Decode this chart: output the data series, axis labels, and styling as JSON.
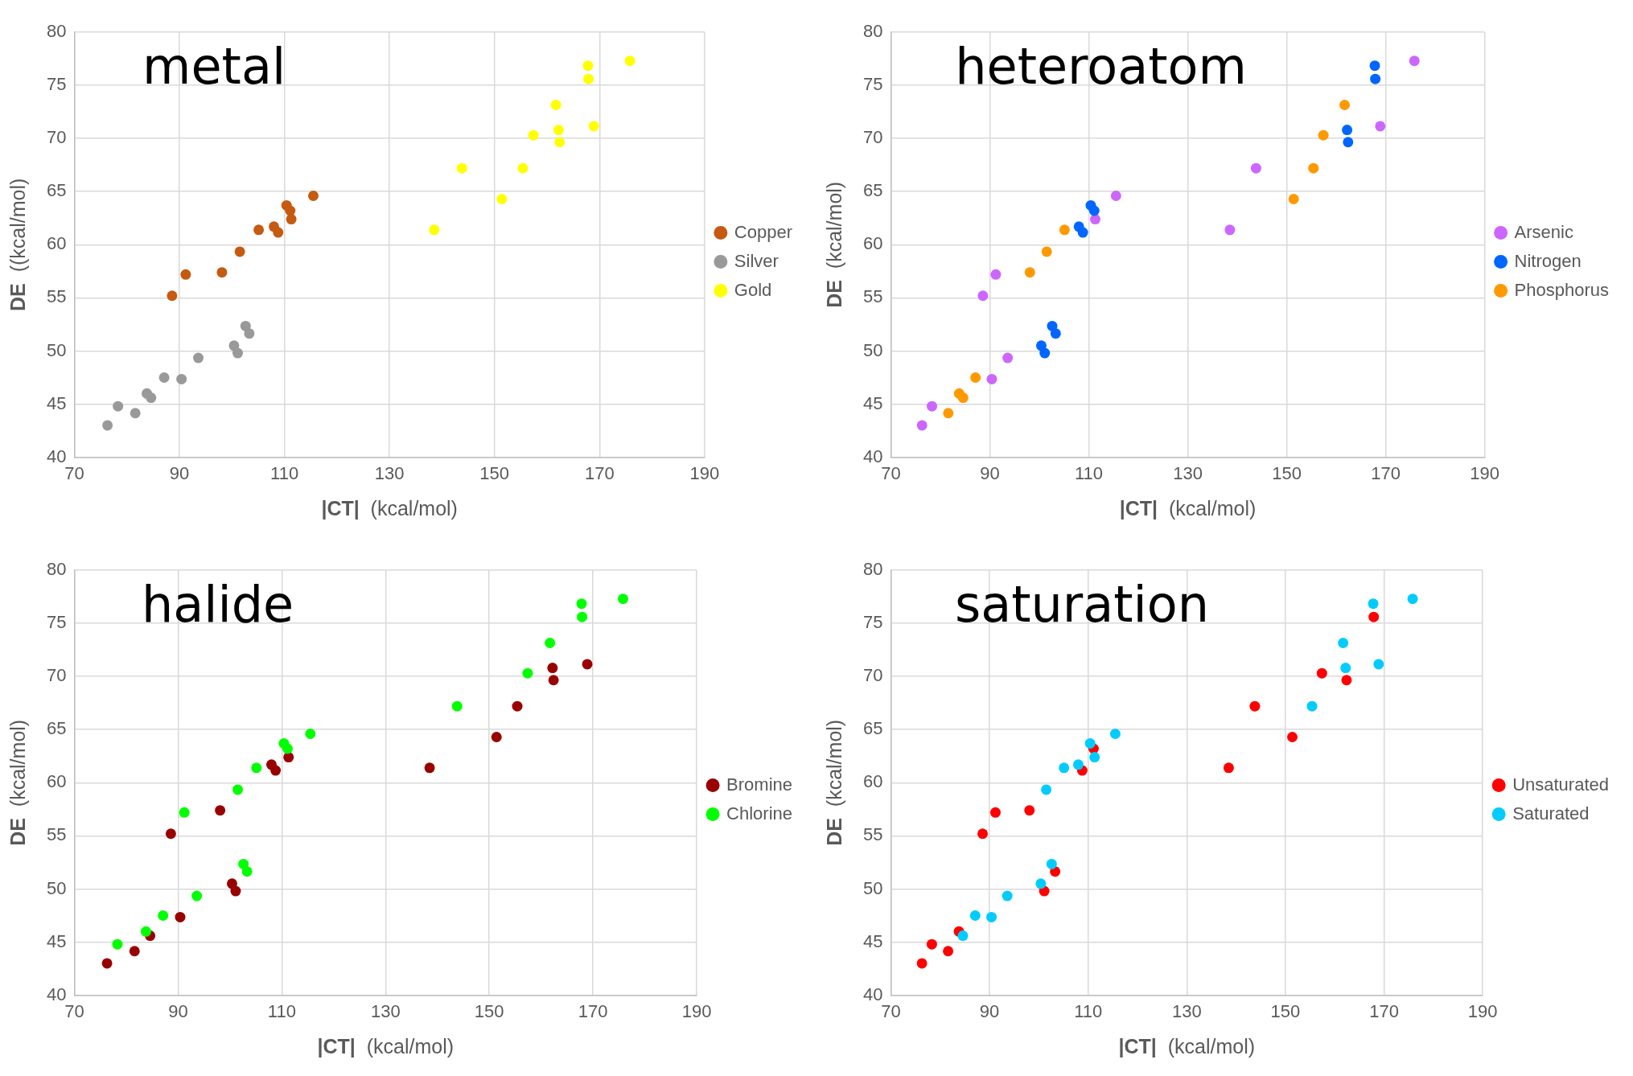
{
  "chart_data": [
    {
      "type": "scatter",
      "title": "metal",
      "xlabel": "|CT|  (kcal/mol)",
      "ylabel": "DE  ((kcal/mol)",
      "xlim": [
        70,
        190
      ],
      "xticks": [
        70,
        90,
        110,
        130,
        150,
        170,
        190
      ],
      "ylim": [
        40,
        80
      ],
      "yticks": [
        40,
        45,
        50,
        55,
        60,
        65,
        70,
        75,
        80
      ],
      "grid": true,
      "legend": "right",
      "marker": "circle",
      "series": [
        {
          "name": "Copper",
          "color": "#c55a11",
          "x": [
            88.6,
            91.2,
            98.1,
            101.5,
            105.1,
            108.0,
            108.8,
            110.4,
            111.1,
            111.3,
            115.5
          ],
          "values": [
            55.2,
            57.2,
            57.4,
            59.35,
            61.4,
            61.7,
            61.15,
            63.7,
            63.2,
            62.4,
            64.6
          ]
        },
        {
          "name": "Silver",
          "color": "#999999",
          "x": [
            76.3,
            78.3,
            81.6,
            83.8,
            84.6,
            87.1,
            90.4,
            93.6,
            100.4,
            101.1,
            102.6,
            103.3
          ],
          "values": [
            43.0,
            44.8,
            44.15,
            46.0,
            45.6,
            47.5,
            47.35,
            49.35,
            50.5,
            49.8,
            52.35,
            51.65
          ]
        },
        {
          "name": "Gold",
          "color": "#ffff00",
          "x": [
            138.5,
            143.8,
            151.4,
            155.4,
            157.4,
            161.7,
            162.2,
            162.4,
            167.8,
            167.9,
            168.9,
            175.8
          ],
          "values": [
            61.4,
            67.2,
            64.3,
            67.2,
            70.3,
            73.15,
            70.8,
            69.65,
            76.85,
            75.6,
            71.15,
            77.3
          ]
        }
      ]
    },
    {
      "type": "scatter",
      "title": "heteroatom",
      "xlabel": "|CT|  (kcal/mol)",
      "ylabel": "DE  (kcal/mol)",
      "xlim": [
        70,
        190
      ],
      "xticks": [
        70,
        90,
        110,
        130,
        150,
        170,
        190
      ],
      "ylim": [
        40,
        80
      ],
      "yticks": [
        40,
        45,
        50,
        55,
        60,
        65,
        70,
        75,
        80
      ],
      "grid": true,
      "legend": "right",
      "marker": "circle",
      "series": [
        {
          "name": "Arsenic",
          "color": "#cc66ff",
          "x": [
            76.3,
            78.3,
            88.6,
            90.4,
            91.2,
            93.6,
            111.3,
            115.5,
            138.5,
            143.8,
            168.9,
            175.8
          ],
          "values": [
            43.0,
            44.8,
            55.2,
            47.35,
            57.2,
            49.35,
            62.4,
            64.6,
            61.4,
            67.2,
            71.15,
            77.3
          ]
        },
        {
          "name": "Nitrogen",
          "color": "#0066ff",
          "x": [
            100.4,
            101.1,
            102.6,
            103.3,
            108.0,
            108.8,
            110.4,
            111.1,
            162.2,
            162.4,
            167.8,
            167.9
          ],
          "values": [
            50.5,
            49.8,
            52.35,
            51.65,
            61.7,
            61.15,
            63.7,
            63.2,
            70.8,
            69.65,
            76.85,
            75.6
          ]
        },
        {
          "name": "Phosphorus",
          "color": "#ff9900",
          "x": [
            81.6,
            83.8,
            84.6,
            87.1,
            98.1,
            101.5,
            105.1,
            151.4,
            155.4,
            157.4,
            161.7
          ],
          "values": [
            44.15,
            46.0,
            45.6,
            47.5,
            57.4,
            59.35,
            61.4,
            64.3,
            67.2,
            70.3,
            73.15
          ]
        }
      ]
    },
    {
      "type": "scatter",
      "title": "halide",
      "xlabel": "|CT|  (kcal/mol)",
      "ylabel": "DE  (kcal/mol)",
      "xlim": [
        70,
        190
      ],
      "xticks": [
        70,
        90,
        110,
        130,
        150,
        170,
        190
      ],
      "ylim": [
        40,
        80
      ],
      "yticks": [
        40,
        45,
        50,
        55,
        60,
        65,
        70,
        75,
        80
      ],
      "grid": true,
      "legend": "right",
      "marker": "circle",
      "series": [
        {
          "name": "Bromine",
          "color": "#990000",
          "x": [
            76.3,
            81.6,
            84.6,
            90.4,
            88.6,
            98.1,
            100.4,
            101.1,
            108.0,
            108.8,
            111.3,
            138.5,
            151.4,
            155.4,
            162.2,
            162.4,
            168.9
          ],
          "values": [
            43.0,
            44.15,
            45.6,
            47.35,
            55.2,
            57.4,
            50.5,
            49.8,
            61.7,
            61.15,
            62.4,
            61.4,
            64.3,
            67.2,
            70.8,
            69.65,
            71.15
          ]
        },
        {
          "name": "Chlorine",
          "color": "#00ff00",
          "x": [
            78.3,
            83.8,
            87.1,
            93.6,
            91.2,
            101.5,
            102.6,
            103.3,
            105.1,
            110.4,
            111.1,
            115.5,
            143.8,
            157.4,
            161.7,
            167.8,
            167.9,
            175.8
          ],
          "values": [
            44.8,
            46.0,
            47.5,
            49.35,
            57.2,
            59.35,
            52.35,
            51.65,
            61.4,
            63.7,
            63.2,
            64.6,
            67.2,
            70.3,
            73.15,
            76.85,
            75.6,
            77.3
          ]
        }
      ]
    },
    {
      "type": "scatter",
      "title": "saturation",
      "xlabel": "|CT|  (kcal/mol)",
      "ylabel": "DE  (kcal/mol)",
      "xlim": [
        70,
        190
      ],
      "xticks": [
        70,
        90,
        110,
        130,
        150,
        170,
        190
      ],
      "ylim": [
        40,
        80
      ],
      "yticks": [
        40,
        45,
        50,
        55,
        60,
        65,
        70,
        75,
        80
      ],
      "grid": true,
      "legend": "right",
      "marker": "circle",
      "series": [
        {
          "name": "Unsaturated",
          "color": "#ff0000",
          "x": [
            76.3,
            78.3,
            81.6,
            83.8,
            88.6,
            91.2,
            98.1,
            101.1,
            103.3,
            108.8,
            111.1,
            138.5,
            143.8,
            151.4,
            157.4,
            162.4,
            167.9
          ],
          "values": [
            43.0,
            44.8,
            44.15,
            46.0,
            55.2,
            57.2,
            57.4,
            49.8,
            51.65,
            61.15,
            63.2,
            61.4,
            67.2,
            64.3,
            70.3,
            69.65,
            75.6
          ]
        },
        {
          "name": "Saturated",
          "color": "#00ccff",
          "x": [
            84.6,
            87.1,
            90.4,
            93.6,
            101.5,
            100.4,
            102.6,
            105.1,
            108.0,
            110.4,
            111.3,
            115.5,
            155.4,
            161.7,
            162.2,
            167.8,
            168.9,
            175.8
          ],
          "values": [
            45.6,
            47.5,
            47.35,
            49.35,
            59.35,
            50.5,
            52.35,
            61.4,
            61.7,
            63.7,
            62.4,
            64.6,
            67.2,
            73.15,
            70.8,
            76.85,
            71.15,
            77.3
          ]
        }
      ]
    }
  ]
}
